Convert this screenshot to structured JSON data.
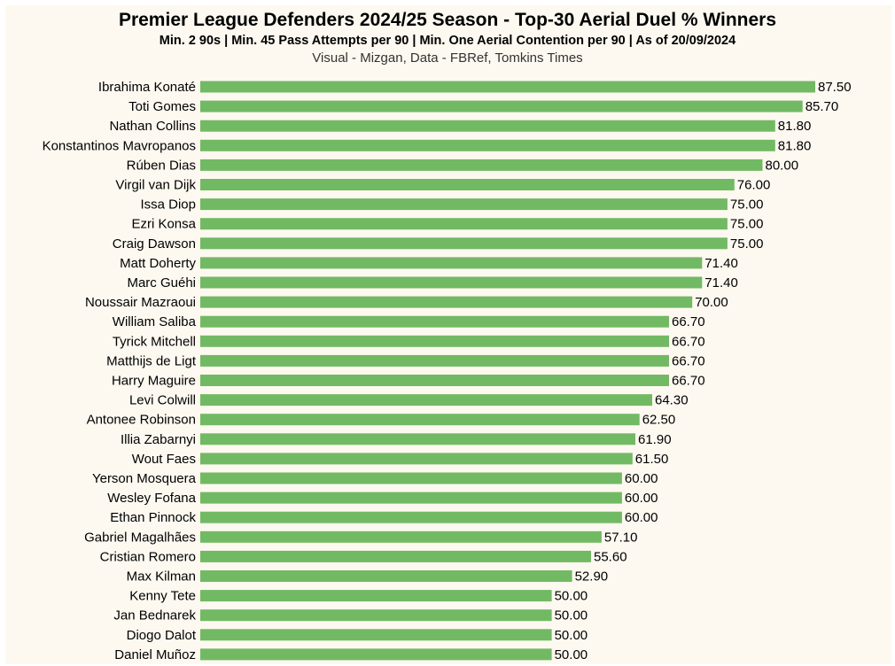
{
  "chart_data": {
    "type": "bar",
    "orientation": "horizontal",
    "title": "Premier League Defenders 2024/25 Season - Top-30 Aerial Duel % Winners",
    "subtitle": "Min. 2 90s | Min. 45 Pass Attempts per 90 | Min. One Aerial Contention per 90 | As of 20/09/2024",
    "credit": "Visual - Mizgan, Data - FBRef, Tomkins Times",
    "xlabel": "",
    "ylabel": "",
    "xlim": [
      0,
      87.5
    ],
    "grid": false,
    "bar_color": "#72b964",
    "background_color": "#fdf9f0",
    "categories": [
      "Ibrahima Konaté",
      "Toti Gomes",
      "Nathan Collins",
      "Konstantinos Mavropanos",
      "Rúben Dias",
      "Virgil van Dijk",
      "Issa Diop",
      "Ezri Konsa",
      "Craig Dawson",
      "Matt Doherty",
      "Marc Guéhi",
      "Noussair Mazraoui",
      "William Saliba",
      "Tyrick Mitchell",
      "Matthijs de Ligt",
      "Harry Maguire",
      "Levi Colwill",
      "Antonee Robinson",
      "Illia Zabarnyi",
      "Wout Faes",
      "Yerson Mosquera",
      "Wesley Fofana",
      "Ethan Pinnock",
      "Gabriel Magalhães",
      "Cristian Romero",
      "Max Kilman",
      "Kenny Tete",
      "Jan Bednarek",
      "Diogo Dalot",
      "Daniel Muñoz"
    ],
    "values": [
      87.5,
      85.7,
      81.8,
      81.8,
      80.0,
      76.0,
      75.0,
      75.0,
      75.0,
      71.4,
      71.4,
      70.0,
      66.7,
      66.7,
      66.7,
      66.7,
      64.3,
      62.5,
      61.9,
      61.5,
      60.0,
      60.0,
      60.0,
      57.1,
      55.6,
      52.9,
      50.0,
      50.0,
      50.0,
      50.0
    ],
    "value_labels": [
      "87.50",
      "85.70",
      "81.80",
      "81.80",
      "80.00",
      "76.00",
      "75.00",
      "75.00",
      "75.00",
      "71.40",
      "71.40",
      "70.00",
      "66.70",
      "66.70",
      "66.70",
      "66.70",
      "64.30",
      "62.50",
      "61.90",
      "61.50",
      "60.00",
      "60.00",
      "60.00",
      "57.10",
      "55.60",
      "52.90",
      "50.00",
      "50.00",
      "50.00",
      "50.00"
    ]
  }
}
